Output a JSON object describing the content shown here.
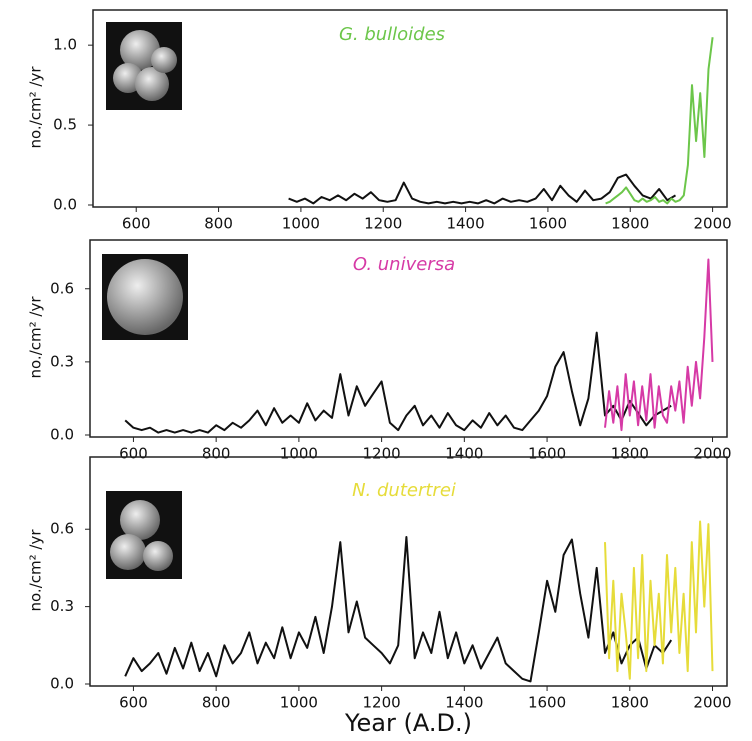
{
  "chart_data": [
    {
      "type": "line",
      "title": "G. bulloides",
      "title_color": "#6cc64a",
      "ylabel": "no./cm² /yr",
      "xlim": [
        495,
        2035
      ],
      "ylim": [
        0,
        1.22
      ],
      "xticks": [
        600,
        800,
        1000,
        1200,
        1400,
        1600,
        1800,
        2000
      ],
      "yticks": [
        {
          "value": 0,
          "label": "0.0"
        },
        0.5,
        {
          "value": 1,
          "label": "1.0"
        }
      ],
      "series": [
        {
          "color": "#111111",
          "x": [
            970,
            990,
            1010,
            1030,
            1050,
            1070,
            1090,
            1110,
            1130,
            1150,
            1170,
            1190,
            1210,
            1230,
            1250,
            1270,
            1290,
            1310,
            1330,
            1350,
            1370,
            1390,
            1410,
            1430,
            1450,
            1470,
            1490,
            1510,
            1530,
            1550,
            1570,
            1590,
            1610,
            1630,
            1650,
            1670,
            1690,
            1710,
            1730,
            1750,
            1770,
            1790,
            1810,
            1830,
            1850,
            1870,
            1890,
            1910
          ],
          "values": [
            0.04,
            0.02,
            0.04,
            0.01,
            0.05,
            0.03,
            0.06,
            0.03,
            0.07,
            0.04,
            0.08,
            0.03,
            0.02,
            0.03,
            0.14,
            0.04,
            0.02,
            0.01,
            0.02,
            0.01,
            0.02,
            0.01,
            0.02,
            0.01,
            0.03,
            0.01,
            0.04,
            0.02,
            0.03,
            0.02,
            0.04,
            0.1,
            0.03,
            0.12,
            0.06,
            0.02,
            0.09,
            0.03,
            0.04,
            0.08,
            0.17,
            0.19,
            0.12,
            0.06,
            0.04,
            0.1,
            0.03,
            0.06
          ]
        },
        {
          "color": "#6cc64a",
          "x": [
            1740,
            1750,
            1760,
            1770,
            1780,
            1790,
            1800,
            1810,
            1820,
            1830,
            1840,
            1850,
            1860,
            1870,
            1880,
            1890,
            1900,
            1910,
            1920,
            1930,
            1940,
            1950,
            1960,
            1970,
            1980,
            1990,
            2000
          ],
          "values": [
            0.01,
            0.02,
            0.04,
            0.06,
            0.08,
            0.11,
            0.07,
            0.03,
            0.02,
            0.04,
            0.02,
            0.03,
            0.05,
            0.02,
            0.03,
            0.01,
            0.04,
            0.02,
            0.03,
            0.06,
            0.25,
            0.75,
            0.4,
            0.7,
            0.3,
            0.85,
            1.05
          ]
        }
      ]
    },
    {
      "type": "line",
      "title": "O. universa",
      "title_color": "#d63aa6",
      "ylabel": "no./cm² /yr",
      "xlim": [
        495,
        2035
      ],
      "ylim": [
        0,
        0.8
      ],
      "xticks": [
        600,
        800,
        1000,
        1200,
        1400,
        1600,
        1800,
        2000
      ],
      "yticks": [
        {
          "value": 0,
          "label": "0.0"
        },
        0.3,
        0.6
      ],
      "series": [
        {
          "color": "#111111",
          "x": [
            580,
            600,
            620,
            640,
            660,
            680,
            700,
            720,
            740,
            760,
            780,
            800,
            820,
            840,
            860,
            880,
            900,
            920,
            940,
            960,
            980,
            1000,
            1020,
            1040,
            1060,
            1080,
            1100,
            1120,
            1140,
            1160,
            1180,
            1200,
            1220,
            1240,
            1260,
            1280,
            1300,
            1320,
            1340,
            1360,
            1380,
            1400,
            1420,
            1440,
            1460,
            1480,
            1500,
            1520,
            1540,
            1560,
            1580,
            1600,
            1620,
            1640,
            1660,
            1680,
            1700,
            1720,
            1740,
            1760,
            1780,
            1800,
            1820,
            1840,
            1860,
            1880,
            1900
          ],
          "values": [
            0.06,
            0.03,
            0.02,
            0.03,
            0.01,
            0.02,
            0.01,
            0.02,
            0.01,
            0.02,
            0.01,
            0.04,
            0.02,
            0.05,
            0.03,
            0.06,
            0.1,
            0.04,
            0.11,
            0.05,
            0.08,
            0.05,
            0.13,
            0.06,
            0.1,
            0.07,
            0.25,
            0.08,
            0.2,
            0.12,
            0.17,
            0.22,
            0.05,
            0.02,
            0.08,
            0.12,
            0.04,
            0.08,
            0.03,
            0.09,
            0.04,
            0.02,
            0.06,
            0.03,
            0.09,
            0.04,
            0.08,
            0.03,
            0.02,
            0.06,
            0.1,
            0.16,
            0.28,
            0.34,
            0.18,
            0.04,
            0.15,
            0.42,
            0.08,
            0.12,
            0.06,
            0.14,
            0.09,
            0.04,
            0.08,
            0.1,
            0.12
          ]
        },
        {
          "color": "#d63aa6",
          "x": [
            1740,
            1750,
            1760,
            1770,
            1780,
            1790,
            1800,
            1810,
            1820,
            1830,
            1840,
            1850,
            1860,
            1870,
            1880,
            1890,
            1900,
            1910,
            1920,
            1930,
            1940,
            1950,
            1960,
            1970,
            1980,
            1990,
            2000
          ],
          "values": [
            0.03,
            0.18,
            0.05,
            0.2,
            0.02,
            0.25,
            0.08,
            0.22,
            0.04,
            0.2,
            0.06,
            0.25,
            0.03,
            0.2,
            0.08,
            0.05,
            0.2,
            0.1,
            0.22,
            0.05,
            0.28,
            0.12,
            0.3,
            0.15,
            0.4,
            0.72,
            0.3
          ]
        }
      ]
    },
    {
      "type": "line",
      "title": "N. dutertrei",
      "title_color": "#e6dc3a",
      "ylabel": "no./cm² /yr",
      "xlabel": "Year (A.D.)",
      "xlim": [
        495,
        2035
      ],
      "ylim": [
        0,
        0.88
      ],
      "xticks": [
        600,
        800,
        1000,
        1200,
        1400,
        1600,
        1800,
        2000
      ],
      "yticks": [
        {
          "value": 0,
          "label": "0.0"
        },
        0.3,
        0.6
      ],
      "series": [
        {
          "color": "#111111",
          "x": [
            580,
            600,
            620,
            640,
            660,
            680,
            700,
            720,
            740,
            760,
            780,
            800,
            820,
            840,
            860,
            880,
            900,
            920,
            940,
            960,
            980,
            1000,
            1020,
            1040,
            1060,
            1080,
            1100,
            1120,
            1140,
            1160,
            1180,
            1200,
            1220,
            1240,
            1260,
            1280,
            1300,
            1320,
            1340,
            1360,
            1380,
            1400,
            1420,
            1440,
            1460,
            1480,
            1500,
            1520,
            1540,
            1560,
            1580,
            1600,
            1620,
            1640,
            1660,
            1680,
            1700,
            1720,
            1740,
            1760,
            1780,
            1800,
            1820,
            1840,
            1860,
            1880,
            1900
          ],
          "values": [
            0.03,
            0.1,
            0.05,
            0.08,
            0.12,
            0.04,
            0.14,
            0.06,
            0.16,
            0.05,
            0.12,
            0.03,
            0.15,
            0.08,
            0.12,
            0.2,
            0.08,
            0.16,
            0.1,
            0.22,
            0.1,
            0.2,
            0.14,
            0.26,
            0.12,
            0.3,
            0.55,
            0.2,
            0.32,
            0.18,
            0.15,
            0.12,
            0.08,
            0.15,
            0.57,
            0.1,
            0.2,
            0.12,
            0.28,
            0.1,
            0.2,
            0.08,
            0.15,
            0.06,
            0.12,
            0.18,
            0.08,
            0.05,
            0.02,
            0.01,
            0.2,
            0.4,
            0.28,
            0.5,
            0.56,
            0.35,
            0.18,
            0.45,
            0.12,
            0.2,
            0.08,
            0.15,
            0.18,
            0.06,
            0.15,
            0.12,
            0.17
          ]
        },
        {
          "color": "#e6dc3a",
          "x": [
            1740,
            1750,
            1760,
            1770,
            1780,
            1790,
            1800,
            1810,
            1820,
            1830,
            1840,
            1850,
            1860,
            1870,
            1880,
            1890,
            1900,
            1910,
            1920,
            1930,
            1940,
            1950,
            1960,
            1970,
            1980,
            1990,
            2000
          ],
          "values": [
            0.55,
            0.1,
            0.4,
            0.05,
            0.35,
            0.2,
            0.02,
            0.45,
            0.1,
            0.5,
            0.05,
            0.4,
            0.15,
            0.35,
            0.08,
            0.5,
            0.2,
            0.45,
            0.12,
            0.35,
            0.05,
            0.55,
            0.2,
            0.63,
            0.3,
            0.62,
            0.05
          ]
        }
      ]
    }
  ]
}
